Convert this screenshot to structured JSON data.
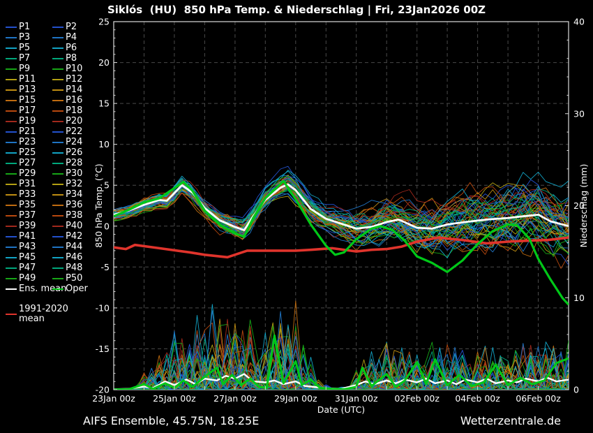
{
  "title": "Siklós  (HU)  850 hPa Temp. & Niederschlag | Fri, 23Jan2026 00Z",
  "footer": {
    "left": "AIFS Ensemble, 45.75N, 18.25E",
    "right": "Wetterzentrale.de"
  },
  "colors": {
    "background": "#000000",
    "text": "#ffffff",
    "grid": "#4a4a4a",
    "spine": "#dcdcdc",
    "ens_mean": "#ffffff",
    "oper": "#00c818",
    "clim_mean": "#e0342c"
  },
  "palette": [
    "#2351cd",
    "#1f74c4",
    "#12a3c4",
    "#00a87c",
    "#16a616",
    "#b3a012",
    "#bf8d12",
    "#bf6c10",
    "#b8480e",
    "#a1281c"
  ],
  "legend": {
    "members": [
      "P1",
      "P2",
      "P3",
      "P4",
      "P5",
      "P6",
      "P7",
      "P8",
      "P9",
      "P10",
      "P11",
      "P12",
      "P13",
      "P14",
      "P15",
      "P16",
      "P17",
      "P18",
      "P19",
      "P20",
      "P21",
      "P22",
      "P23",
      "P24",
      "P25",
      "P26",
      "P27",
      "P28",
      "P29",
      "P30",
      "P31",
      "P32",
      "P33",
      "P34",
      "P35",
      "P36",
      "P37",
      "P38",
      "P39",
      "P40",
      "P41",
      "P42",
      "P43",
      "P44",
      "P45",
      "P46",
      "P47",
      "P48",
      "P49",
      "P50"
    ],
    "special": [
      {
        "label": "Ens. mean",
        "color": "#ffffff"
      },
      {
        "label": "Oper",
        "color": "#00c818"
      }
    ],
    "clim": {
      "label_lines": [
        "1991-2020",
        "mean"
      ],
      "color": "#e0342c"
    }
  },
  "chart_data": {
    "type": "line",
    "title": "Siklós  (HU)  850 hPa Temp. & Niederschlag | Fri, 23Jan2026 00Z",
    "xlabel": "Date (UTC)",
    "ylabel_left": "850 hPa Temp. (°C)",
    "ylabel_right": "Niederschlag (mm)",
    "x_range_days": [
      0,
      15
    ],
    "x_tick_labels": [
      "23Jan 00z",
      "25Jan 00z",
      "27Jan 00z",
      "29Jan 00z",
      "31Jan 00z",
      "02Feb 00z",
      "04Feb 00z",
      "06Feb 00z"
    ],
    "x_tick_days": [
      0,
      2,
      4,
      6,
      8,
      10,
      12,
      14
    ],
    "y_left_range": [
      -20,
      25
    ],
    "y_left_ticks": [
      -20,
      -15,
      -10,
      -5,
      0,
      5,
      10,
      15,
      20,
      25
    ],
    "y_right_range": [
      0,
      40
    ],
    "y_right_ticks": [
      0,
      10,
      20,
      30,
      40
    ],
    "grid": "dashed, every 1 day vertical, every 5 °C horizontal",
    "legend_position": "left margin",
    "series": {
      "ens_mean_temp": [
        [
          0,
          1.4
        ],
        [
          0.5,
          1.9
        ],
        [
          1,
          2.6
        ],
        [
          1.5,
          3.2
        ],
        [
          1.75,
          3.1
        ],
        [
          2.25,
          5.0
        ],
        [
          2.6,
          4.1
        ],
        [
          3,
          2.2
        ],
        [
          3.5,
          0.7
        ],
        [
          4,
          -0.1
        ],
        [
          4.3,
          -0.5
        ],
        [
          4.6,
          1.2
        ],
        [
          5,
          3.2
        ],
        [
          5.5,
          4.7
        ],
        [
          5.75,
          5.1
        ],
        [
          6,
          4.4
        ],
        [
          6.5,
          2.1
        ],
        [
          7,
          0.9
        ],
        [
          7.5,
          0.3
        ],
        [
          8,
          -0.3
        ],
        [
          8.5,
          -0.1
        ],
        [
          9,
          0.5
        ],
        [
          9.4,
          0.8
        ],
        [
          10,
          -0.2
        ],
        [
          10.5,
          -0.3
        ],
        [
          11,
          0.2
        ],
        [
          11.6,
          0.5
        ],
        [
          12.3,
          0.8
        ],
        [
          13,
          1.0
        ],
        [
          13.5,
          1.2
        ],
        [
          14,
          1.4
        ],
        [
          14.4,
          0.6
        ],
        [
          15,
          0.0
        ]
      ],
      "oper_temp": [
        [
          0,
          1.2
        ],
        [
          0.5,
          2.0
        ],
        [
          1,
          2.9
        ],
        [
          1.5,
          3.4
        ],
        [
          2.3,
          5.4
        ],
        [
          2.6,
          4.3
        ],
        [
          3,
          1.9
        ],
        [
          3.5,
          0.2
        ],
        [
          4,
          -0.9
        ],
        [
          4.3,
          -1.3
        ],
        [
          4.6,
          1.0
        ],
        [
          5,
          3.4
        ],
        [
          5.6,
          5.5
        ],
        [
          6,
          3.3
        ],
        [
          6.5,
          0.2
        ],
        [
          7,
          -2.4
        ],
        [
          7.3,
          -3.5
        ],
        [
          7.6,
          -3.2
        ],
        [
          8,
          -1.6
        ],
        [
          8.5,
          -0.3
        ],
        [
          8.8,
          0.0
        ],
        [
          9.2,
          -0.5
        ],
        [
          9.6,
          -1.8
        ],
        [
          10,
          -3.7
        ],
        [
          10.5,
          -4.5
        ],
        [
          11,
          -5.6
        ],
        [
          11.5,
          -4.2
        ],
        [
          12,
          -2.2
        ],
        [
          12.5,
          -0.6
        ],
        [
          13,
          0.2
        ],
        [
          13.3,
          0.1
        ],
        [
          13.7,
          -1.5
        ],
        [
          14,
          -4.0
        ],
        [
          14.4,
          -6.5
        ],
        [
          14.8,
          -8.8
        ],
        [
          15,
          -9.6
        ]
      ],
      "clim_mean_temp": [
        [
          0,
          -2.6
        ],
        [
          0.4,
          -2.8
        ],
        [
          0.7,
          -2.3
        ],
        [
          1.5,
          -2.7
        ],
        [
          2.5,
          -3.2
        ],
        [
          3,
          -3.5
        ],
        [
          3.75,
          -3.8
        ],
        [
          4.4,
          -3.0
        ],
        [
          6,
          -3.0
        ],
        [
          6.5,
          -2.9
        ],
        [
          7.2,
          -2.7
        ],
        [
          8,
          -3.1
        ],
        [
          8.5,
          -2.9
        ],
        [
          9,
          -2.8
        ],
        [
          9.5,
          -2.5
        ],
        [
          10,
          -1.9
        ],
        [
          10.7,
          -1.4
        ],
        [
          11.5,
          -1.7
        ],
        [
          12.3,
          -2.1
        ],
        [
          13,
          -1.9
        ],
        [
          13.5,
          -1.8
        ],
        [
          14.3,
          -1.7
        ],
        [
          15,
          -1.4
        ]
      ],
      "ens_mean_precip": [
        [
          0,
          0.05
        ],
        [
          0.5,
          0.1
        ],
        [
          1,
          0.35
        ],
        [
          1.3,
          0.2
        ],
        [
          1.7,
          0.9
        ],
        [
          2,
          0.5
        ],
        [
          2.4,
          1.1
        ],
        [
          2.7,
          0.6
        ],
        [
          3,
          1.2
        ],
        [
          3.4,
          1.0
        ],
        [
          3.7,
          1.5
        ],
        [
          4,
          1.2
        ],
        [
          4.3,
          1.7
        ],
        [
          4.6,
          0.9
        ],
        [
          5,
          0.8
        ],
        [
          5.3,
          1.0
        ],
        [
          5.6,
          0.6
        ],
        [
          6,
          0.9
        ],
        [
          6.3,
          0.4
        ],
        [
          6.6,
          0.3
        ],
        [
          7,
          0.15
        ],
        [
          7.5,
          0.1
        ],
        [
          8,
          0.5
        ],
        [
          8.3,
          0.9
        ],
        [
          8.6,
          0.6
        ],
        [
          9,
          1.0
        ],
        [
          9.3,
          0.7
        ],
        [
          9.6,
          1.1
        ],
        [
          10,
          0.8
        ],
        [
          10.3,
          1.2
        ],
        [
          10.6,
          0.7
        ],
        [
          11,
          1.0
        ],
        [
          11.3,
          0.6
        ],
        [
          11.6,
          1.1
        ],
        [
          12,
          0.8
        ],
        [
          12.3,
          1.2
        ],
        [
          12.6,
          0.7
        ],
        [
          13,
          1.0
        ],
        [
          13.3,
          0.8
        ],
        [
          13.6,
          1.2
        ],
        [
          14,
          0.9
        ],
        [
          14.3,
          1.3
        ],
        [
          14.6,
          0.9
        ],
        [
          15,
          1.1
        ]
      ],
      "oper_precip": [
        [
          0,
          0.02
        ],
        [
          0.5,
          0.05
        ],
        [
          1,
          0.6
        ],
        [
          1.3,
          0.1
        ],
        [
          1.7,
          0.7
        ],
        [
          2,
          0.2
        ],
        [
          2.3,
          1.0
        ],
        [
          2.6,
          0.3
        ],
        [
          3,
          1.4
        ],
        [
          3.4,
          2.4
        ],
        [
          3.6,
          0.6
        ],
        [
          3.9,
          1.6
        ],
        [
          4.2,
          0.5
        ],
        [
          4.5,
          1.2
        ],
        [
          4.8,
          0.3
        ],
        [
          5.05,
          0.2
        ],
        [
          5.3,
          5.9
        ],
        [
          5.6,
          0.7
        ],
        [
          6,
          3.1
        ],
        [
          6.2,
          0.5
        ],
        [
          6.5,
          1.1
        ],
        [
          6.8,
          0.2
        ],
        [
          7.2,
          0.1
        ],
        [
          7.6,
          0.05
        ],
        [
          8,
          0.3
        ],
        [
          8.2,
          2.4
        ],
        [
          8.5,
          0.4
        ],
        [
          9,
          1.7
        ],
        [
          9.3,
          0.3
        ],
        [
          9.6,
          1.0
        ],
        [
          10,
          3.0
        ],
        [
          10.3,
          0.6
        ],
        [
          10.6,
          3.3
        ],
        [
          11,
          0.5
        ],
        [
          11.4,
          1.6
        ],
        [
          11.8,
          0.4
        ],
        [
          12.2,
          0.8
        ],
        [
          12.6,
          2.7
        ],
        [
          13,
          0.5
        ],
        [
          13.4,
          1.3
        ],
        [
          13.8,
          0.6
        ],
        [
          14.2,
          1.0
        ],
        [
          14.6,
          2.9
        ],
        [
          15,
          3.4
        ]
      ]
    },
    "ensemble": {
      "count": 50,
      "temp_spread_envelope": [
        [
          0,
          0.8
        ],
        [
          1,
          1.1
        ],
        [
          2,
          1.6
        ],
        [
          3,
          2.2
        ],
        [
          4,
          2.6
        ],
        [
          5,
          2.2
        ],
        [
          6,
          2.6
        ],
        [
          7,
          3.6
        ],
        [
          8,
          5.5
        ],
        [
          9,
          7.0
        ],
        [
          10,
          8.5
        ],
        [
          11,
          9.5
        ],
        [
          12,
          10.5
        ],
        [
          13,
          11.0
        ],
        [
          14,
          12.0
        ],
        [
          15,
          12.5
        ]
      ],
      "precip_max_envelope": [
        [
          0,
          0.2
        ],
        [
          0.75,
          0.4
        ],
        [
          1,
          2.5
        ],
        [
          1.5,
          4
        ],
        [
          2,
          6.5
        ],
        [
          2.5,
          7.5
        ],
        [
          3,
          9
        ],
        [
          3.5,
          9.5
        ],
        [
          4,
          8.5
        ],
        [
          4.5,
          8
        ],
        [
          5,
          9
        ],
        [
          5.5,
          10
        ],
        [
          6,
          9.5
        ],
        [
          6.4,
          6
        ],
        [
          6.8,
          1
        ],
        [
          7.2,
          0.3
        ],
        [
          7.8,
          0.5
        ],
        [
          8.2,
          4
        ],
        [
          9,
          5.5
        ],
        [
          10,
          5
        ],
        [
          11,
          5.5
        ],
        [
          12,
          5
        ],
        [
          13,
          5.5
        ],
        [
          14,
          5.5
        ],
        [
          15,
          6
        ]
      ]
    }
  }
}
